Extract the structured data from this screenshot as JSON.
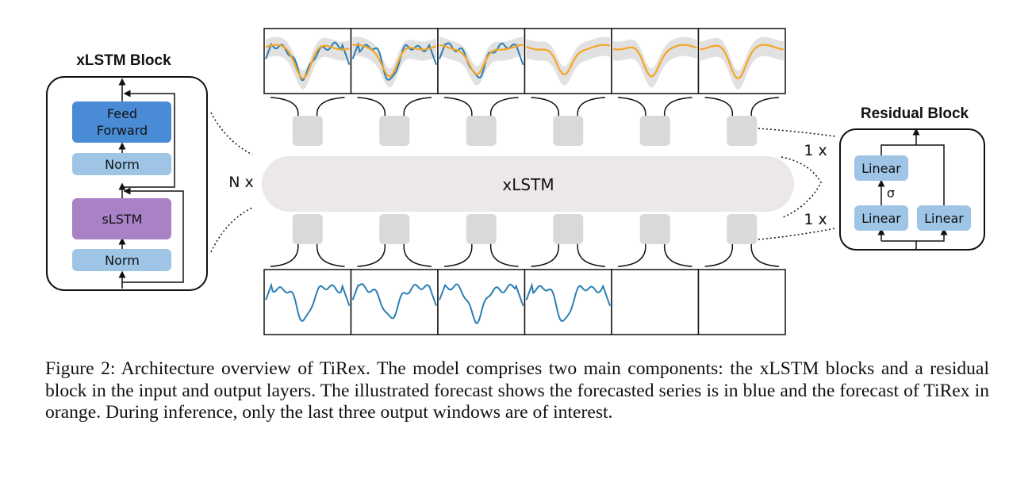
{
  "xlstm_block": {
    "title": "xLSTM Block",
    "feed_forward": [
      "Feed",
      "Forward"
    ],
    "norm_top": "Norm",
    "slstm": "sLSTM",
    "norm_bottom": "Norm"
  },
  "center": {
    "xlstm_label": "xLSTM",
    "repeat_label": "N x"
  },
  "residual_block": {
    "title": "Residual Block",
    "linear_top": "Linear",
    "activation": "σ",
    "linear_bottom_left": "Linear",
    "linear_bottom_right": "Linear",
    "repeat_top": "1 x",
    "repeat_bottom": "1 x"
  },
  "colors": {
    "series_blue": "#2a7fb5",
    "forecast_orange": "#f5a524",
    "band_gray": "#d9d9d9",
    "feed_forward": "#4a8bd6",
    "norm": "#9ec5e6",
    "slstm": "#a982c6",
    "xlstm_pill": "#ece7e9",
    "token_box": "#d9d9d9"
  },
  "caption": "Figure 2: Architecture overview of TiRex. The model comprises two main components: the xLSTM blocks and a residual block in the input and output layers. The illustrated forecast shows the forecasted series is in blue and the forecast of TiRex in orange. During inference, only the last three output windows are of interest."
}
